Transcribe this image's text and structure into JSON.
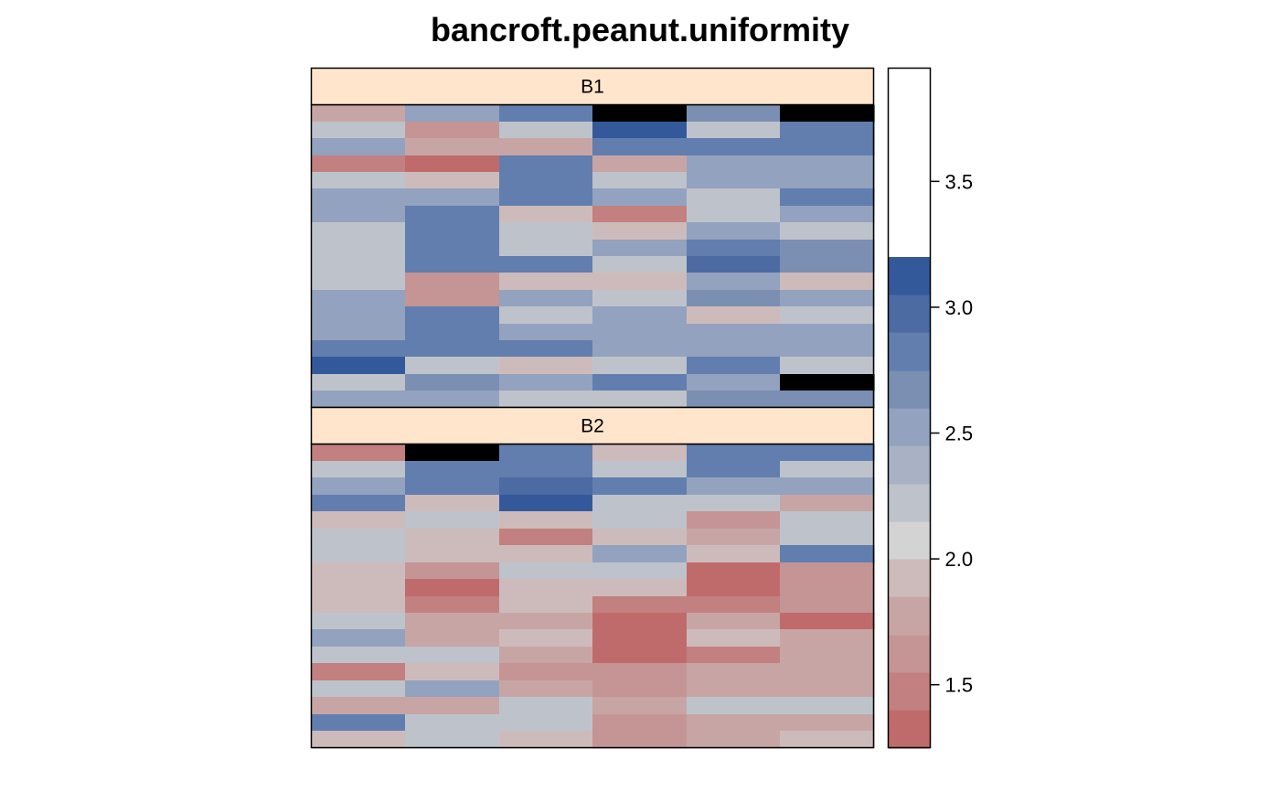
{
  "chart_data": {
    "type": "heatmap",
    "title": "bancroft.peanut.uniformity",
    "xlabel": "",
    "ylabel": "",
    "axes_drawn": false,
    "columns": 6,
    "rows_per_panel": 18,
    "colorkey": {
      "breaks": [
        1.25,
        1.4,
        1.55,
        1.7,
        1.85,
        2.0,
        2.15,
        2.3,
        2.45,
        2.6,
        2.75,
        2.9,
        3.05,
        3.2,
        3.35,
        3.5,
        3.65,
        3.8,
        3.95
      ],
      "colors": [
        "#C06B6B",
        "#C28080",
        "#C59595",
        "#C8A5A5",
        "#CDBBBB",
        "#D3D3D3",
        "#BEC3CB",
        "#A8B2C4",
        "#93A2BE",
        "#7B8FB3",
        "#617EAE",
        "#4C6BA3",
        "#34599A"
      ],
      "ticks": [
        1.5,
        2.0,
        2.5,
        3.0,
        3.5
      ],
      "tick_labels": [
        "1.5",
        "2.0",
        "2.5",
        "3.0",
        "3.5"
      ],
      "range": [
        1.25,
        3.95
      ]
    },
    "panels": [
      {
        "strip": "B1",
        "rows_top_to_bottom": [
          [
            1.8,
            2.5,
            2.9,
            3.85,
            2.7,
            3.5
          ],
          [
            2.2,
            1.6,
            2.2,
            3.2,
            2.3,
            2.8
          ],
          [
            2.6,
            1.8,
            1.75,
            2.9,
            2.8,
            2.8
          ],
          [
            1.55,
            1.4,
            2.9,
            1.8,
            2.6,
            2.6
          ],
          [
            2.3,
            1.9,
            2.9,
            2.3,
            2.6,
            2.6
          ],
          [
            2.6,
            2.6,
            2.8,
            2.6,
            2.2,
            2.9
          ],
          [
            2.6,
            2.9,
            1.9,
            1.55,
            2.2,
            2.55
          ],
          [
            2.2,
            2.9,
            2.2,
            1.9,
            2.6,
            2.2
          ],
          [
            2.2,
            2.9,
            2.2,
            2.6,
            2.8,
            2.75
          ],
          [
            2.2,
            2.9,
            2.9,
            2.3,
            2.95,
            2.75
          ],
          [
            2.2,
            1.6,
            1.9,
            1.9,
            2.6,
            1.9
          ],
          [
            2.6,
            1.6,
            2.6,
            2.3,
            2.75,
            2.6
          ],
          [
            2.6,
            2.8,
            2.2,
            2.6,
            1.9,
            2.2
          ],
          [
            2.6,
            2.8,
            2.6,
            2.6,
            2.6,
            2.6
          ],
          [
            2.8,
            2.8,
            2.9,
            2.6,
            2.6,
            2.6
          ],
          [
            3.1,
            2.2,
            1.9,
            2.2,
            2.9,
            2.2
          ],
          [
            2.2,
            2.75,
            2.5,
            2.8,
            2.6,
            3.3
          ],
          [
            2.6,
            2.6,
            2.3,
            2.2,
            2.7,
            2.7
          ]
        ]
      },
      {
        "strip": "B2",
        "rows_top_to_bottom": [
          [
            1.55,
            3.3,
            2.9,
            1.9,
            2.8,
            2.8
          ],
          [
            2.2,
            2.8,
            2.8,
            2.2,
            2.8,
            2.2
          ],
          [
            2.6,
            2.8,
            2.95,
            2.8,
            2.6,
            2.6
          ],
          [
            2.8,
            1.9,
            3.1,
            2.2,
            2.2,
            1.8
          ],
          [
            1.9,
            2.2,
            1.9,
            2.2,
            1.6,
            2.2
          ],
          [
            2.2,
            1.9,
            1.55,
            1.9,
            1.75,
            2.2
          ],
          [
            2.2,
            1.9,
            1.9,
            2.6,
            1.9,
            2.8
          ],
          [
            1.9,
            1.6,
            2.2,
            2.2,
            1.4,
            1.6
          ],
          [
            1.9,
            1.4,
            1.9,
            1.9,
            1.4,
            1.6
          ],
          [
            1.9,
            1.55,
            1.9,
            1.55,
            1.55,
            1.6
          ],
          [
            2.2,
            1.8,
            1.8,
            1.4,
            1.8,
            1.4
          ],
          [
            2.6,
            1.8,
            1.9,
            1.4,
            1.9,
            1.8
          ],
          [
            2.2,
            2.2,
            1.75,
            1.4,
            1.55,
            1.8
          ],
          [
            1.55,
            1.9,
            1.6,
            1.6,
            1.8,
            1.8
          ],
          [
            2.2,
            2.6,
            1.75,
            1.6,
            1.8,
            1.8
          ],
          [
            1.8,
            1.8,
            2.2,
            1.75,
            2.2,
            2.2
          ],
          [
            2.8,
            2.2,
            2.2,
            1.6,
            1.8,
            1.8
          ],
          [
            1.9,
            2.2,
            1.9,
            1.6,
            1.8,
            1.9
          ]
        ]
      }
    ]
  }
}
